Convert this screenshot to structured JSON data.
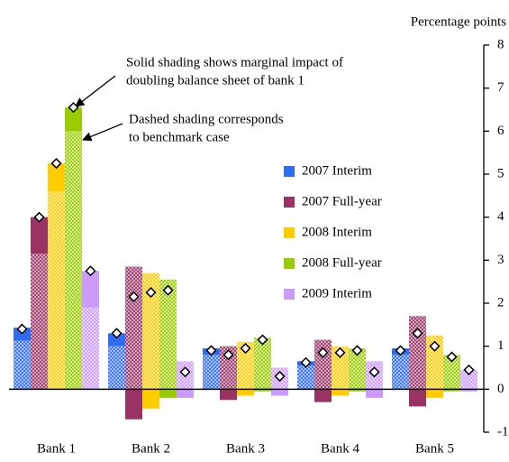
{
  "chart_data": {
    "type": "bar",
    "unit_label": "Percentage points",
    "annotations": [
      [
        "Solid shading shows marginal impact of",
        "doubling balance sheet of bank 1"
      ],
      [
        "Dashed shading corresponds",
        "to benchmark case"
      ]
    ],
    "categories": [
      "Bank 1",
      "Bank 2",
      "Bank 3",
      "Bank 4",
      "Bank 5"
    ],
    "series": [
      {
        "name": "2007 Interim",
        "color": "#2e6cf2",
        "benchmark": [
          1.13,
          1.0,
          0.8,
          0.55,
          0.8
        ],
        "impact": [
          0.3,
          0.3,
          0.15,
          0.1,
          0.15
        ],
        "total": [
          1.4,
          1.3,
          0.9,
          0.62,
          0.9
        ]
      },
      {
        "name": "2007 Full-year",
        "color": "#993366",
        "benchmark": [
          3.15,
          2.85,
          1.0,
          1.15,
          1.7
        ],
        "impact": [
          0.85,
          -0.7,
          -0.25,
          -0.3,
          -0.4
        ],
        "total": [
          4.0,
          2.15,
          0.8,
          0.85,
          1.3
        ]
      },
      {
        "name": "2008 Interim",
        "color": "#ffcc00",
        "benchmark": [
          4.6,
          2.7,
          1.1,
          1.0,
          1.25
        ],
        "impact": [
          0.65,
          -0.45,
          -0.15,
          -0.15,
          -0.2
        ],
        "total": [
          5.25,
          2.25,
          0.95,
          0.85,
          1.0
        ]
      },
      {
        "name": "2008 Full-year",
        "color": "#99cc00",
        "benchmark": [
          6.0,
          2.55,
          1.2,
          0.95,
          0.8
        ],
        "impact": [
          0.55,
          -0.2,
          -0.05,
          -0.05,
          -0.05
        ],
        "total": [
          6.55,
          2.3,
          1.15,
          0.9,
          0.75
        ]
      },
      {
        "name": "2009 Interim",
        "color": "#cc99ff",
        "benchmark": [
          1.9,
          0.65,
          0.5,
          0.65,
          0.45
        ],
        "impact": [
          0.85,
          -0.2,
          -0.15,
          -0.2,
          -0.05
        ],
        "total": [
          2.75,
          0.4,
          0.3,
          0.4,
          0.45
        ]
      }
    ],
    "ylim": [
      -1,
      8
    ],
    "yticks": [
      -1,
      0,
      1,
      2,
      3,
      4,
      5,
      6,
      7,
      8
    ],
    "legend": "right"
  }
}
